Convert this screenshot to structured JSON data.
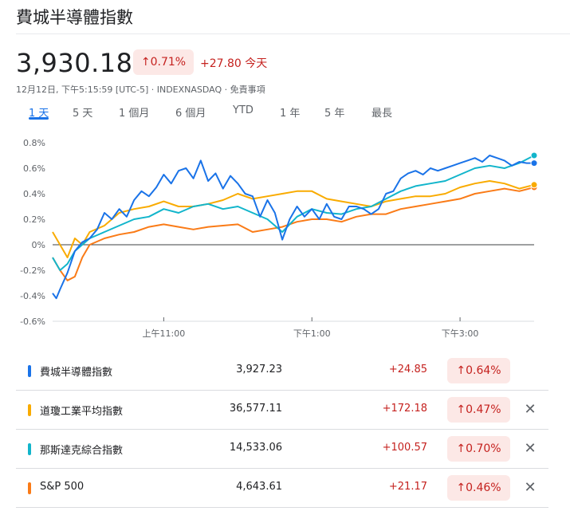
{
  "header": {
    "title": "費城半導體指數",
    "price": "3,930.18",
    "change_pct": "↑0.71%",
    "change_abs": "+27.80 今天",
    "meta": "12月12日, 下午5:15:59 [UTC-5] · INDEXNASDAQ · 免責事項"
  },
  "tabs": [
    {
      "label": "1 天",
      "active": true
    },
    {
      "label": "5 天"
    },
    {
      "label": "1 個月"
    },
    {
      "label": "6 個月"
    },
    {
      "label": "YTD"
    },
    {
      "label": "1 年"
    },
    {
      "label": "5 年"
    },
    {
      "label": "最長"
    }
  ],
  "chart_data": {
    "type": "line",
    "ylim": [
      -0.6,
      0.8
    ],
    "y_ticks": [
      "0.8%",
      "0.6%",
      "0.4%",
      "0.2%",
      "0%",
      "-0.2%",
      "-0.4%",
      "-0.6%"
    ],
    "y_tick_values": [
      0.8,
      0.6,
      0.4,
      0.2,
      0,
      -0.2,
      -0.4,
      -0.6
    ],
    "xlim": [
      9.5,
      16.0
    ],
    "x_ticks": [
      {
        "label": "上午11:00",
        "value": 11
      },
      {
        "label": "下午1:00",
        "value": 13
      },
      {
        "label": "下午3:00",
        "value": 15
      }
    ],
    "zero_line": true,
    "series": [
      {
        "name": "費城半導體指數",
        "color": "#1a73e8",
        "x": [
          9.5,
          9.55,
          9.6,
          9.7,
          9.8,
          9.9,
          10.0,
          10.1,
          10.2,
          10.3,
          10.4,
          10.5,
          10.6,
          10.7,
          10.8,
          10.9,
          11.0,
          11.1,
          11.2,
          11.3,
          11.4,
          11.5,
          11.6,
          11.7,
          11.8,
          11.9,
          12.0,
          12.1,
          12.2,
          12.3,
          12.4,
          12.5,
          12.6,
          12.7,
          12.8,
          12.9,
          13.0,
          13.1,
          13.2,
          13.3,
          13.4,
          13.5,
          13.6,
          13.7,
          13.8,
          13.9,
          14.0,
          14.1,
          14.2,
          14.3,
          14.4,
          14.5,
          14.6,
          14.7,
          14.8,
          14.9,
          15.0,
          15.1,
          15.2,
          15.3,
          15.4,
          15.5,
          15.6,
          15.7,
          15.8,
          15.9,
          16.0
        ],
        "y": [
          -0.38,
          -0.42,
          -0.35,
          -0.22,
          -0.05,
          0.02,
          0.05,
          0.12,
          0.25,
          0.2,
          0.28,
          0.22,
          0.35,
          0.42,
          0.38,
          0.45,
          0.55,
          0.48,
          0.58,
          0.6,
          0.52,
          0.66,
          0.5,
          0.56,
          0.44,
          0.54,
          0.48,
          0.4,
          0.38,
          0.22,
          0.35,
          0.25,
          0.04,
          0.2,
          0.3,
          0.22,
          0.28,
          0.2,
          0.32,
          0.22,
          0.2,
          0.3,
          0.3,
          0.28,
          0.24,
          0.28,
          0.4,
          0.42,
          0.52,
          0.56,
          0.58,
          0.55,
          0.6,
          0.58,
          0.6,
          0.62,
          0.64,
          0.66,
          0.68,
          0.65,
          0.7,
          0.68,
          0.66,
          0.62,
          0.65,
          0.64,
          0.64
        ]
      },
      {
        "name": "道瓊工業平均指數",
        "color": "#f9ab00",
        "x": [
          9.5,
          9.6,
          9.7,
          9.8,
          9.9,
          10.0,
          10.2,
          10.4,
          10.6,
          10.8,
          11.0,
          11.2,
          11.4,
          11.6,
          11.8,
          12.0,
          12.2,
          12.4,
          12.6,
          12.8,
          13.0,
          13.2,
          13.4,
          13.6,
          13.8,
          14.0,
          14.2,
          14.4,
          14.6,
          14.8,
          15.0,
          15.2,
          15.4,
          15.6,
          15.8,
          16.0
        ],
        "y": [
          0.1,
          0.0,
          -0.1,
          0.05,
          0.0,
          0.1,
          0.15,
          0.25,
          0.28,
          0.3,
          0.34,
          0.3,
          0.3,
          0.32,
          0.35,
          0.4,
          0.36,
          0.38,
          0.4,
          0.42,
          0.42,
          0.36,
          0.34,
          0.32,
          0.3,
          0.34,
          0.36,
          0.38,
          0.38,
          0.4,
          0.45,
          0.48,
          0.5,
          0.48,
          0.44,
          0.47
        ]
      },
      {
        "name": "那斯達克綜合指數",
        "color": "#12b5cb",
        "x": [
          9.5,
          9.6,
          9.7,
          9.8,
          9.9,
          10.0,
          10.2,
          10.4,
          10.6,
          10.8,
          11.0,
          11.2,
          11.4,
          11.6,
          11.8,
          12.0,
          12.2,
          12.4,
          12.6,
          12.8,
          13.0,
          13.2,
          13.4,
          13.6,
          13.8,
          14.0,
          14.2,
          14.4,
          14.6,
          14.8,
          15.0,
          15.2,
          15.4,
          15.6,
          15.8,
          16.0
        ],
        "y": [
          -0.1,
          -0.2,
          -0.15,
          -0.05,
          0.0,
          0.05,
          0.1,
          0.15,
          0.2,
          0.22,
          0.28,
          0.25,
          0.3,
          0.32,
          0.28,
          0.3,
          0.25,
          0.2,
          0.1,
          0.22,
          0.28,
          0.25,
          0.24,
          0.28,
          0.3,
          0.36,
          0.42,
          0.46,
          0.48,
          0.5,
          0.55,
          0.6,
          0.62,
          0.6,
          0.64,
          0.7
        ]
      },
      {
        "name": "S&P 500",
        "color": "#fa7b17",
        "x": [
          9.5,
          9.6,
          9.7,
          9.8,
          9.9,
          10.0,
          10.2,
          10.4,
          10.6,
          10.8,
          11.0,
          11.2,
          11.4,
          11.6,
          11.8,
          12.0,
          12.2,
          12.4,
          12.6,
          12.8,
          13.0,
          13.2,
          13.4,
          13.6,
          13.8,
          14.0,
          14.2,
          14.4,
          14.6,
          14.8,
          15.0,
          15.2,
          15.4,
          15.6,
          15.8,
          16.0
        ],
        "y": [
          -0.1,
          -0.2,
          -0.28,
          -0.25,
          -0.1,
          0.0,
          0.05,
          0.08,
          0.1,
          0.14,
          0.16,
          0.14,
          0.12,
          0.14,
          0.15,
          0.16,
          0.1,
          0.12,
          0.14,
          0.18,
          0.2,
          0.2,
          0.18,
          0.22,
          0.24,
          0.24,
          0.28,
          0.3,
          0.32,
          0.34,
          0.36,
          0.4,
          0.42,
          0.44,
          0.42,
          0.45
        ]
      }
    ]
  },
  "legend": [
    {
      "name": "費城半導體指數",
      "color": "#1a73e8",
      "value": "3,927.23",
      "change": "+24.85",
      "pct": "↑0.64%",
      "removable": false
    },
    {
      "name": "道瓊工業平均指數",
      "color": "#f9ab00",
      "value": "36,577.11",
      "change": "+172.18",
      "pct": "↑0.47%",
      "removable": true
    },
    {
      "name": "那斯達克綜合指數",
      "color": "#12b5cb",
      "value": "14,533.06",
      "change": "+100.57",
      "pct": "↑0.70%",
      "removable": true
    },
    {
      "name": "S&P 500",
      "color": "#fa7b17",
      "value": "4,643.61",
      "change": "+21.17",
      "pct": "↑0.46%",
      "removable": true
    }
  ],
  "icons": {
    "close": "close-icon",
    "up_arrow": "arrow-up-icon"
  }
}
